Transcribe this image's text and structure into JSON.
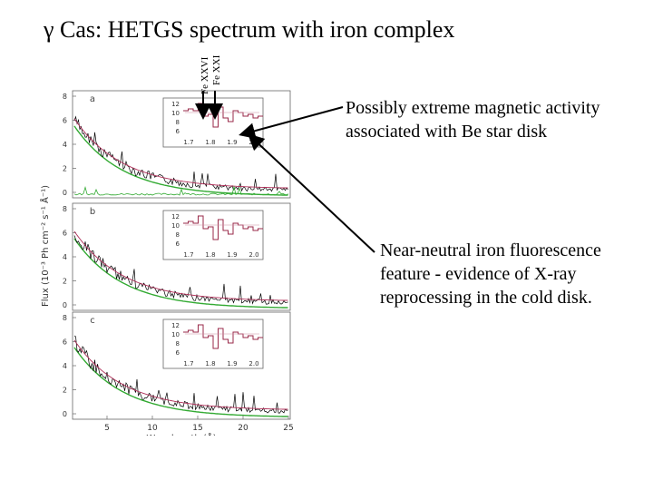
{
  "title": "γ Cas: HETGS spectrum with iron complex",
  "line_labels": {
    "fe_xxvi": "Fe XXVI",
    "fe_xxi": "Fe XXI"
  },
  "annotations": {
    "magnetic": "Possibly extreme magnetic activity associated with Be star disk",
    "fluorescence": "Near-neutral iron fluorescence feature - evidence of X-ray reprocessing in the cold disk."
  },
  "figure": {
    "ylabel": "Flux (10⁻³ Ph cm⁻² s⁻¹ Å⁻¹)",
    "xlabel": "Wavelength (Å)",
    "panels": [
      {
        "letter": "a",
        "yticks": [
          "8",
          "6",
          "4",
          "2",
          "0"
        ]
      },
      {
        "letter": "b",
        "yticks": [
          "8",
          "6",
          "4",
          "2",
          "0"
        ]
      },
      {
        "letter": "c",
        "yticks": [
          "8",
          "6",
          "4",
          "2",
          "0"
        ]
      }
    ],
    "xticks": [
      "5",
      "10",
      "15",
      "20",
      "25"
    ],
    "inset_yticks": [
      "12",
      "10",
      "8",
      "6"
    ],
    "inset_xticks": [
      "1.7",
      "1.8",
      "1.9",
      "2.0"
    ]
  },
  "colors": {
    "spectrum": "#000000",
    "model": "#b0305a",
    "green_model": "#33aa33",
    "inset_line": "#9a2a4a"
  }
}
